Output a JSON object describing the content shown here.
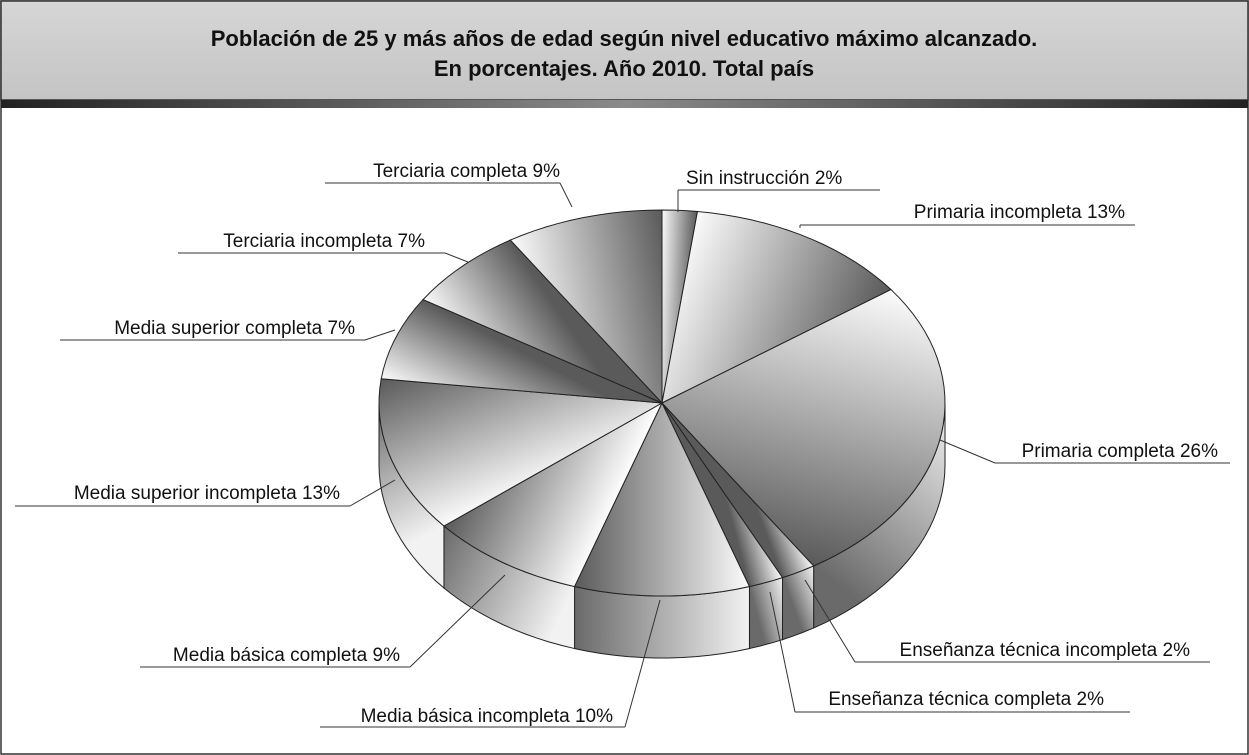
{
  "chart_data": {
    "type": "pie",
    "title": "Población de 25 y más años de edad según nivel educativo máximo alcanzado.",
    "subtitle": "En porcentajes. Año 2010. Total país",
    "categories": [
      "Sin instrucción",
      "Primaria incompleta",
      "Primaria completa",
      "Enseñanza técnica incompleta",
      "Enseñanza técnica completa",
      "Media básica incompleta",
      "Media básica completa",
      "Media superior incompleta",
      "Media superior completa",
      "Terciaria incompleta",
      "Terciaria completa"
    ],
    "values": [
      2,
      13,
      26,
      2,
      2,
      10,
      9,
      13,
      7,
      7,
      9
    ],
    "value_labels": [
      "2%",
      "13%",
      "26%",
      "2%",
      "2%",
      "10%",
      "9%",
      "13%",
      "7%",
      "7%",
      "9%"
    ]
  }
}
